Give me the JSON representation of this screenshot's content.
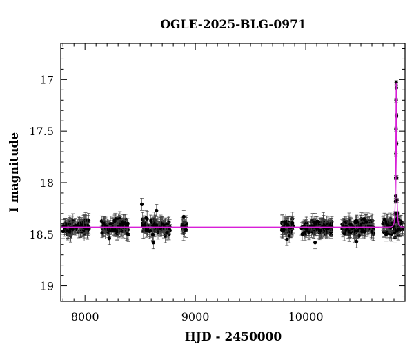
{
  "chart_data": {
    "type": "scatter",
    "title": "OGLE-2025-BLG-0971",
    "xlabel": "HJD - 2450000",
    "ylabel": "I magnitude",
    "xlim": [
      7780,
      10900
    ],
    "ylim": [
      19.15,
      16.65
    ],
    "y_inverted": true,
    "x_major_ticks": [
      8000,
      9000,
      10000
    ],
    "y_major_ticks": [
      17,
      17.5,
      18,
      18.5,
      19
    ],
    "x_tick_labels": [
      "8000",
      "9000",
      "10000"
    ],
    "y_tick_labels": [
      "17",
      "17.5",
      "18",
      "18.5",
      "19"
    ],
    "grid": false,
    "legend": "none",
    "colors": {
      "data": "#000000",
      "errorbar": "#444444",
      "model": "#d81fd8"
    },
    "baseline_magnitude": 18.43,
    "observing_seasons": [
      {
        "start": 7800,
        "end": 8040
      },
      {
        "start": 8150,
        "end": 8400
      },
      {
        "start": 8520,
        "end": 8770
      },
      {
        "start": 8880,
        "end": 8920
      },
      {
        "start": 9780,
        "end": 9890
      },
      {
        "start": 9960,
        "end": 10240
      },
      {
        "start": 10330,
        "end": 10620
      },
      {
        "start": 10700,
        "end": 10880
      }
    ],
    "event": {
      "peak_hjd": 10820,
      "peak_magnitude": 17.03,
      "peak_points": [
        {
          "x": 10812,
          "y": 18.3
        },
        {
          "x": 10814,
          "y": 18.18
        },
        {
          "x": 10815,
          "y": 18.13
        },
        {
          "x": 10816,
          "y": 17.95
        },
        {
          "x": 10817,
          "y": 17.72
        },
        {
          "x": 10818,
          "y": 17.48
        },
        {
          "x": 10819,
          "y": 17.2
        },
        {
          "x": 10820,
          "y": 17.03
        },
        {
          "x": 10821,
          "y": 17.08
        },
        {
          "x": 10822,
          "y": 17.35
        },
        {
          "x": 10823,
          "y": 17.62
        },
        {
          "x": 10824,
          "y": 17.95
        },
        {
          "x": 10826,
          "y": 18.17
        },
        {
          "x": 10829,
          "y": 18.3
        }
      ]
    },
    "outlier_points": [
      {
        "x": 8515,
        "y": 18.21
      },
      {
        "x": 8648,
        "y": 18.27
      },
      {
        "x": 8620,
        "y": 18.58
      },
      {
        "x": 8220,
        "y": 18.54
      },
      {
        "x": 10085,
        "y": 18.58
      },
      {
        "x": 10460,
        "y": 18.57
      },
      {
        "x": 9830,
        "y": 18.55
      },
      {
        "x": 8895,
        "y": 18.33
      }
    ]
  }
}
